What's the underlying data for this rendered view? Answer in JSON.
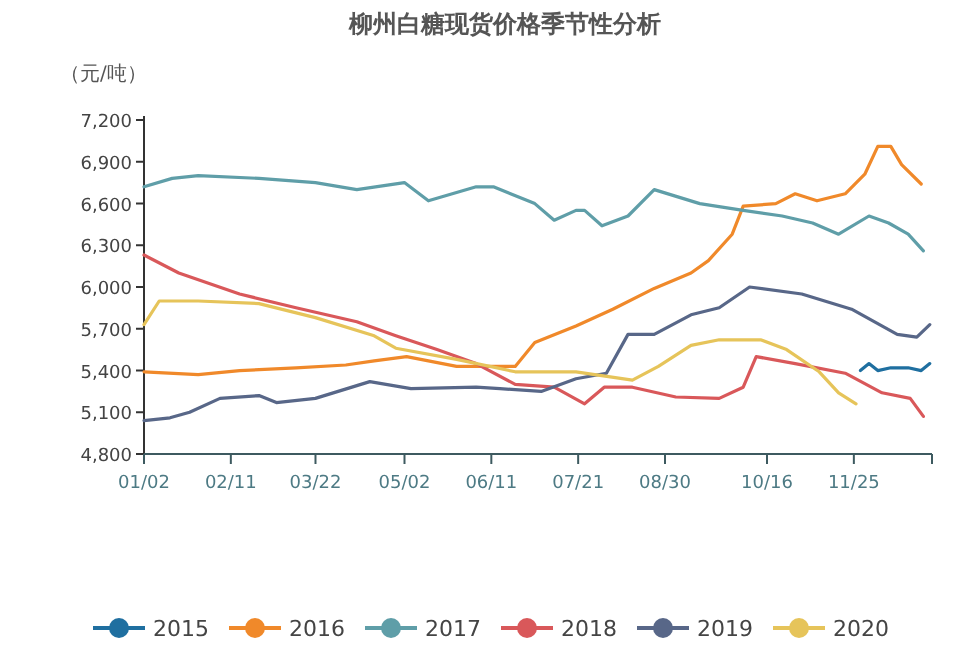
{
  "chart_data": {
    "type": "line",
    "title": "柳州白糖现货价格季节性分析",
    "ylabel": "（元/吨）",
    "xlim": [
      "--01-02",
      "--12-31"
    ],
    "xticks": [
      {
        "value": "--01-02",
        "label": "01/02"
      },
      {
        "value": "--02-11",
        "label": "02/11"
      },
      {
        "value": "--03-22",
        "label": "03/22"
      },
      {
        "value": "--05-02",
        "label": "05/02"
      },
      {
        "value": "--06-11",
        "label": "06/11"
      },
      {
        "value": "--07-21",
        "label": "07/21"
      },
      {
        "value": "--08-30",
        "label": "08/30"
      },
      {
        "value": "--10-16",
        "label": "10/16"
      },
      {
        "value": "--11-25",
        "label": "11/25"
      }
    ],
    "ylim": [
      4800,
      7200
    ],
    "yticks": [
      {
        "value": 4800,
        "label": "4,800"
      },
      {
        "value": 5100,
        "label": "5,100"
      },
      {
        "value": 5400,
        "label": "5,400"
      },
      {
        "value": 5700,
        "label": "5,700"
      },
      {
        "value": 6000,
        "label": "6,000"
      },
      {
        "value": 6300,
        "label": "6,300"
      },
      {
        "value": 6600,
        "label": "6,600"
      },
      {
        "value": 6900,
        "label": "6,900"
      },
      {
        "value": 7200,
        "label": "7,200"
      }
    ],
    "legend": "bottom",
    "grid": false,
    "series": [
      {
        "name": "2015",
        "color": "#1f6fa0",
        "x": [
          "--11-28",
          "--12-02",
          "--12-06",
          "--12-12",
          "--12-20",
          "--12-26",
          "--12-30"
        ],
        "values": [
          5400,
          5450,
          5400,
          5420,
          5420,
          5400,
          5450
        ]
      },
      {
        "name": "2016",
        "color": "#f0892a",
        "x": [
          "--01-02",
          "--01-27",
          "--02-15",
          "--03-13",
          "--04-05",
          "--04-18",
          "--05-03",
          "--05-26",
          "--06-22",
          "--07-01",
          "--07-20",
          "--08-06",
          "--08-25",
          "--09-11",
          "--09-19",
          "--09-30",
          "--10-05",
          "--10-20",
          "--10-29",
          "--11-08",
          "--11-21",
          "--11-30",
          "--12-06",
          "--12-12",
          "--12-17",
          "--12-26"
        ],
        "values": [
          5390,
          5370,
          5400,
          5420,
          5440,
          5470,
          5500,
          5430,
          5430,
          5600,
          5720,
          5840,
          5990,
          6100,
          6190,
          6380,
          6580,
          6600,
          6670,
          6620,
          6670,
          6810,
          7010,
          7010,
          6880,
          6740
        ]
      },
      {
        "name": "2017",
        "color": "#5f9ea8",
        "x": [
          "--01-02",
          "--01-15",
          "--01-27",
          "--02-24",
          "--03-22",
          "--04-10",
          "--05-02",
          "--05-13",
          "--06-04",
          "--06-12",
          "--07-01",
          "--07-10",
          "--07-20",
          "--07-24",
          "--08-01",
          "--08-13",
          "--08-25",
          "--09-15",
          "--10-05",
          "--10-23",
          "--11-06",
          "--11-18",
          "--12-02",
          "--12-11",
          "--12-20",
          "--12-27"
        ],
        "values": [
          6720,
          6780,
          6800,
          6780,
          6750,
          6700,
          6750,
          6620,
          6720,
          6720,
          6600,
          6480,
          6550,
          6550,
          6440,
          6510,
          6700,
          6600,
          6550,
          6510,
          6460,
          6380,
          6510,
          6460,
          6380,
          6260
        ]
      },
      {
        "name": "2018",
        "color": "#d9585a",
        "x": [
          "--01-02",
          "--01-18",
          "--02-15",
          "--03-13",
          "--04-10",
          "--04-28",
          "--05-17",
          "--06-04",
          "--06-22",
          "--07-10",
          "--07-24",
          "--08-02",
          "--08-15",
          "--09-04",
          "--09-24",
          "--10-05",
          "--10-11",
          "--10-29",
          "--11-21",
          "--12-08",
          "--12-21",
          "--12-27"
        ],
        "values": [
          6230,
          6100,
          5950,
          5850,
          5750,
          5650,
          5550,
          5450,
          5300,
          5280,
          5160,
          5280,
          5280,
          5210,
          5200,
          5280,
          5500,
          5450,
          5380,
          5240,
          5200,
          5070
        ]
      },
      {
        "name": "2019",
        "color": "#586788",
        "x": [
          "--01-02",
          "--01-14",
          "--01-23",
          "--02-06",
          "--02-24",
          "--03-04",
          "--03-22",
          "--04-16",
          "--05-05",
          "--06-04",
          "--06-15",
          "--07-04",
          "--07-20",
          "--08-03",
          "--08-13",
          "--08-25",
          "--09-11",
          "--09-24",
          "--10-08",
          "--11-01",
          "--11-24",
          "--12-15",
          "--12-24",
          "--12-30"
        ],
        "values": [
          5040,
          5060,
          5100,
          5200,
          5220,
          5170,
          5200,
          5320,
          5270,
          5280,
          5270,
          5250,
          5340,
          5380,
          5660,
          5660,
          5800,
          5850,
          6000,
          5950,
          5840,
          5660,
          5640,
          5730
        ]
      },
      {
        "name": "2020",
        "color": "#e6c45a",
        "x": [
          "--01-02",
          "--01-09",
          "--01-27",
          "--02-24",
          "--03-22",
          "--04-18",
          "--04-28",
          "--05-26",
          "--06-22",
          "--07-20",
          "--08-15",
          "--08-27",
          "--09-11",
          "--09-24",
          "--10-13",
          "--10-25",
          "--11-09",
          "--11-18",
          "--11-26"
        ],
        "values": [
          5730,
          5900,
          5900,
          5880,
          5780,
          5650,
          5560,
          5480,
          5390,
          5390,
          5330,
          5430,
          5580,
          5620,
          5620,
          5550,
          5390,
          5240,
          5160
        ]
      }
    ]
  }
}
